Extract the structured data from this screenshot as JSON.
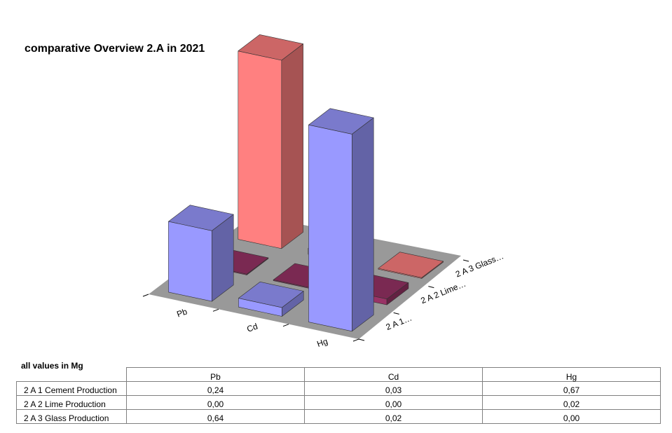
{
  "chart_data": {
    "type": "bar",
    "title": "comparative Overview 2.A in 2021",
    "categories": [
      "Pb",
      "Cd",
      "Hg"
    ],
    "series_axis_labels": [
      "2 A 1…",
      "2 A 2 Lime…",
      "2 A 3 Glass…"
    ],
    "series": [
      {
        "name": "2 A 1 Cement Production",
        "values": [
          0.24,
          0.03,
          0.67
        ],
        "color": "#9999ff"
      },
      {
        "name": "2 A 2 Lime Production",
        "values": [
          0.0,
          0.0,
          0.02
        ],
        "color": "#993366"
      },
      {
        "name": "2 A 3 Glass Production",
        "values": [
          0.64,
          0.02,
          0.0
        ],
        "color": "#ff8080"
      }
    ],
    "floor_color": "#999999",
    "grid": false,
    "legend": "none"
  },
  "table": {
    "units_label": "all values in Mg",
    "columns": [
      "Pb",
      "Cd",
      "Hg"
    ],
    "rows": [
      {
        "label": "2 A 1 Cement Production",
        "values": [
          "0,24",
          "0,03",
          "0,67"
        ]
      },
      {
        "label": "2 A 2 Lime Production",
        "values": [
          "0,00",
          "0,00",
          "0,02"
        ]
      },
      {
        "label": "2 A 3 Glass Production",
        "values": [
          "0,64",
          "0,02",
          "0,00"
        ]
      }
    ]
  }
}
